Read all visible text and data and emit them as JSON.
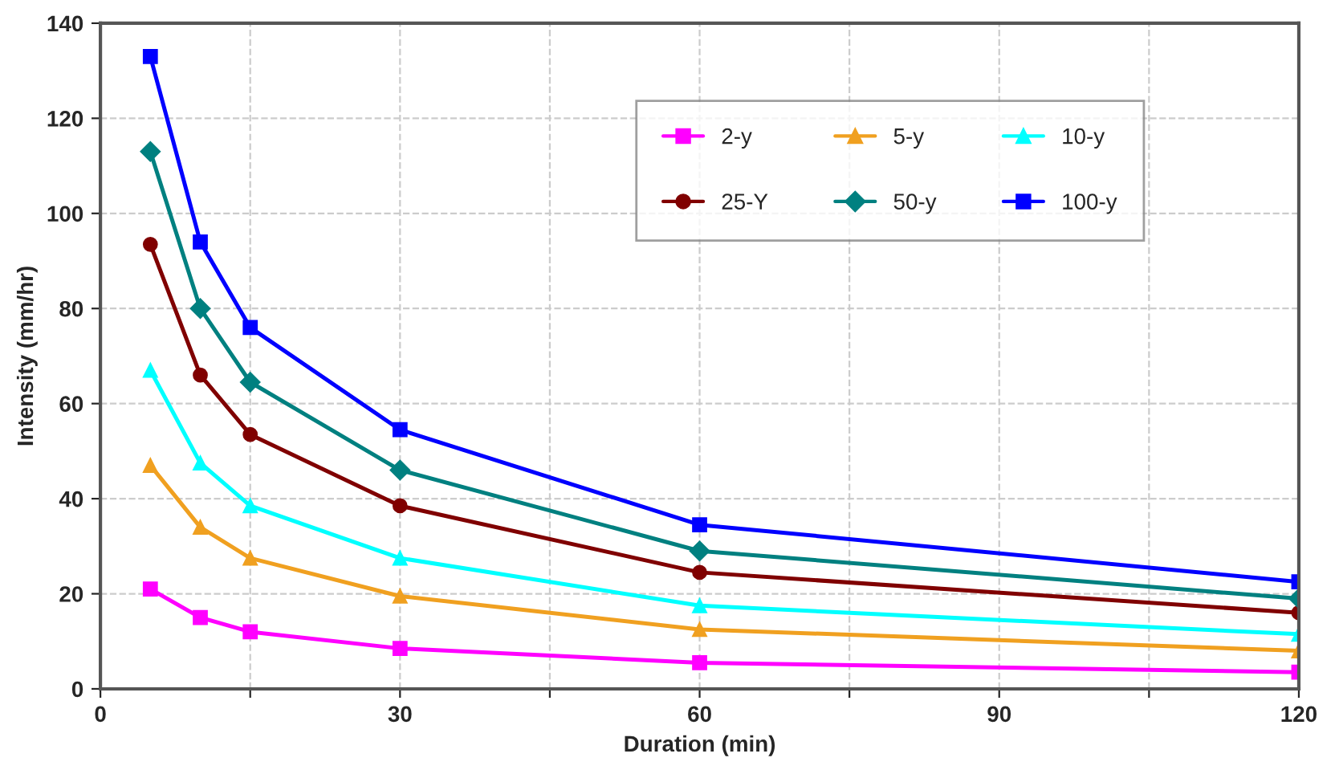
{
  "chart_data": {
    "type": "line",
    "xlabel": "Duration (min)",
    "ylabel": "Intensity (mm/hr)",
    "x": [
      5,
      10,
      15,
      30,
      60,
      120
    ],
    "series": [
      {
        "name": "2-y",
        "color": "#ff00ff",
        "marker": "square",
        "values": [
          21,
          15,
          12,
          8.5,
          5.5,
          3.5
        ]
      },
      {
        "name": "5-y",
        "color": "#f0a020",
        "marker": "triangle",
        "values": [
          47,
          34,
          27.5,
          19.5,
          12.5,
          8
        ]
      },
      {
        "name": "10-y",
        "color": "#00ffff",
        "marker": "triangle",
        "values": [
          67,
          47.5,
          38.5,
          27.5,
          17.5,
          11.5
        ]
      },
      {
        "name": "25-Y",
        "color": "#800000",
        "marker": "circle",
        "values": [
          93.5,
          66,
          53.5,
          38.5,
          24.5,
          16
        ]
      },
      {
        "name": "50-y",
        "color": "#008080",
        "marker": "diamond",
        "values": [
          113,
          80,
          64.5,
          46,
          29,
          19
        ]
      },
      {
        "name": "100-y",
        "color": "#0000ff",
        "marker": "square",
        "values": [
          133,
          94,
          76,
          54.5,
          34.5,
          22.5
        ]
      }
    ],
    "xlim": [
      0,
      120
    ],
    "ylim": [
      0,
      140
    ],
    "xticks": [
      0,
      {
        "value": 15,
        "label": null
      },
      30,
      {
        "value": 45,
        "label": null
      },
      60,
      {
        "value": 75,
        "label": null
      },
      90,
      {
        "value": 105,
        "label": null
      },
      120
    ],
    "yticks": [
      0,
      20,
      40,
      60,
      80,
      100,
      120,
      140
    ],
    "grid": true,
    "legend": "top right",
    "line_style": "solid"
  }
}
